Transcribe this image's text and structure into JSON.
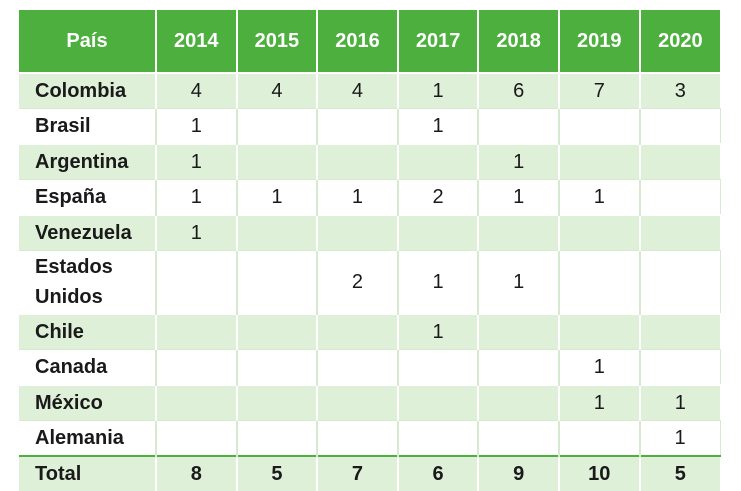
{
  "table": {
    "header": {
      "country": "País",
      "years": [
        "2014",
        "2015",
        "2016",
        "2017",
        "2018",
        "2019",
        "2020"
      ]
    },
    "rows": [
      {
        "country": "Colombia",
        "values": [
          "4",
          "4",
          "4",
          "1",
          "6",
          "7",
          "3"
        ]
      },
      {
        "country": "Brasil",
        "values": [
          "1",
          "",
          "",
          "1",
          "",
          "",
          ""
        ]
      },
      {
        "country": "Argentina",
        "values": [
          "1",
          "",
          "",
          "",
          "1",
          "",
          ""
        ]
      },
      {
        "country": "España",
        "values": [
          "1",
          "1",
          "1",
          "2",
          "1",
          "1",
          ""
        ]
      },
      {
        "country": "Venezuela",
        "values": [
          "1",
          "",
          "",
          "",
          "",
          "",
          ""
        ]
      },
      {
        "country": "Estados Unidos",
        "values": [
          "",
          "",
          "2",
          "1",
          "1",
          "",
          ""
        ]
      },
      {
        "country": "Chile",
        "values": [
          "",
          "",
          "",
          "1",
          "",
          "",
          ""
        ]
      },
      {
        "country": "Canada",
        "values": [
          "",
          "",
          "",
          "",
          "",
          "1",
          ""
        ]
      },
      {
        "country": "México",
        "values": [
          "",
          "",
          "",
          "",
          "",
          "1",
          "1"
        ]
      },
      {
        "country": "Alemania",
        "values": [
          "",
          "",
          "",
          "",
          "",
          "",
          "1"
        ]
      }
    ],
    "total": {
      "label": "Total",
      "values": [
        "8",
        "5",
        "7",
        "6",
        "9",
        "10",
        "5"
      ]
    }
  },
  "colors": {
    "header_bg": "#4caf3e",
    "header_text": "#ffffff",
    "shaded_row": "#dff0d8"
  }
}
